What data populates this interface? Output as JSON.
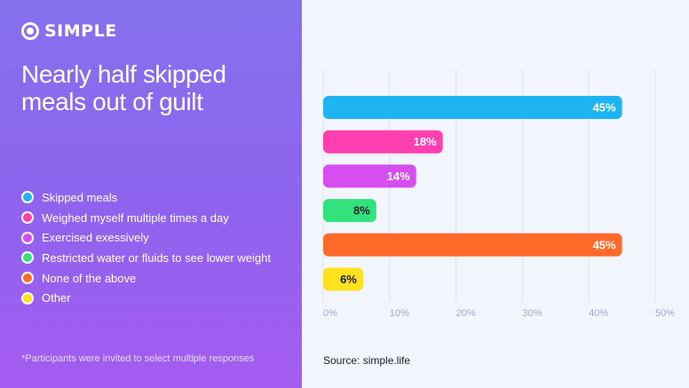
{
  "brand": {
    "name": "SIMPLE",
    "icon": "ring-icon"
  },
  "headline": "Nearly half skipped meals out of guilt",
  "footnote": "*Participants were invited to select multiple responses",
  "source": "Source: simple.life",
  "chart_data": {
    "type": "bar",
    "orientation": "horizontal",
    "categories": [
      "Skipped meals",
      "Weighed myself multiple times a day",
      "Exercised exessively",
      "Restricted water or fluids to see lower weight",
      "None of the above",
      "Other"
    ],
    "values": [
      45,
      18,
      14,
      8,
      45,
      6
    ],
    "value_labels": [
      "45%",
      "18%",
      "14%",
      "8%",
      "45%",
      "6%"
    ],
    "colors": [
      "#1eb4f2",
      "#ff3fb0",
      "#d64ef0",
      "#33e27c",
      "#ff6a2a",
      "#ffe21e"
    ],
    "value_label_colors": [
      "#ffffff",
      "#ffffff",
      "#ffffff",
      "#1b1b2e",
      "#ffffff",
      "#1b1b2e"
    ],
    "xlim": [
      0,
      50
    ],
    "xticks": [
      "0%",
      "10%",
      "20%",
      "30%",
      "40%",
      "50%"
    ],
    "grid": true,
    "legend_position": "left"
  }
}
